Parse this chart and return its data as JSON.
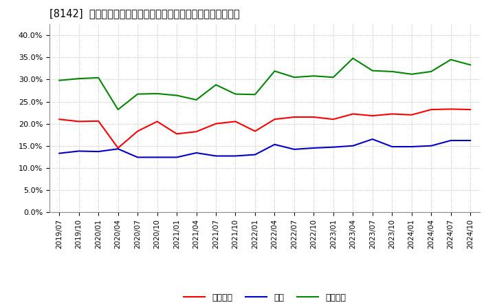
{
  "title": "[8142]  売上債権、在庫、買入債務の総資産に対する比率の推移",
  "x_labels": [
    "2019/07",
    "2019/10",
    "2020/01",
    "2020/04",
    "2020/07",
    "2020/10",
    "2021/01",
    "2021/04",
    "2021/07",
    "2021/10",
    "2022/01",
    "2022/04",
    "2022/07",
    "2022/10",
    "2023/01",
    "2023/04",
    "2023/07",
    "2023/10",
    "2024/01",
    "2024/04",
    "2024/07",
    "2024/10"
  ],
  "売上債権": [
    0.21,
    0.205,
    0.206,
    0.145,
    0.183,
    0.205,
    0.177,
    0.182,
    0.2,
    0.205,
    0.183,
    0.21,
    0.215,
    0.215,
    0.21,
    0.222,
    0.218,
    0.222,
    0.22,
    0.232,
    0.233,
    0.232
  ],
  "在庫": [
    0.133,
    0.138,
    0.137,
    0.143,
    0.124,
    0.124,
    0.124,
    0.134,
    0.127,
    0.127,
    0.13,
    0.153,
    0.142,
    0.145,
    0.147,
    0.15,
    0.165,
    0.148,
    0.148,
    0.15,
    0.162,
    0.162
  ],
  "買入債務": [
    0.298,
    0.302,
    0.304,
    0.232,
    0.267,
    0.268,
    0.264,
    0.254,
    0.288,
    0.267,
    0.266,
    0.319,
    0.305,
    0.308,
    0.305,
    0.348,
    0.32,
    0.318,
    0.312,
    0.318,
    0.345,
    0.333
  ],
  "line_colors": {
    "売上債権": "#ff0000",
    "在庫": "#0000cc",
    "買入債務": "#008800"
  },
  "ylim": [
    0.0,
    0.425
  ],
  "yticks": [
    0.0,
    0.05,
    0.1,
    0.15,
    0.2,
    0.25,
    0.3,
    0.35,
    0.4
  ],
  "background_color": "#ffffff",
  "plot_bg_color": "#ffffff",
  "grid_color": "#aaaaaa",
  "legend_labels": [
    "売上債権",
    "在庫",
    "買入債務"
  ]
}
